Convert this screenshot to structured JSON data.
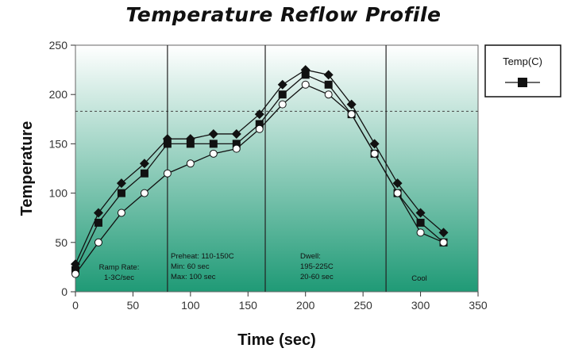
{
  "chart_data": {
    "type": "line",
    "title": "Temperature Reflow Profile",
    "xlabel": "Time (sec)",
    "ylabel": "Temperature",
    "xlim": [
      0,
      350
    ],
    "ylim": [
      0,
      250
    ],
    "x_ticks": [
      "0",
      "50",
      "100",
      "150",
      "200",
      "250",
      "300",
      "350"
    ],
    "y_ticks": [
      "0",
      "50",
      "100",
      "150",
      "200",
      "250"
    ],
    "grid": false,
    "background": "vertical gradient white to green",
    "colors": {
      "gradient_top": "#ffffff",
      "gradient_bottom": "#1f9a76",
      "line": "#111111",
      "reference_line": "#444444"
    },
    "reference_line_y": 183,
    "zone_dividers_x": [
      80,
      165,
      270
    ],
    "legend": {
      "position": "right",
      "label": "Temp(C)"
    },
    "zone_annotations": [
      {
        "id": "ramp",
        "lines": [
          "Ramp Rate:",
          "1-3C/sec"
        ]
      },
      {
        "id": "preheat",
        "lines": [
          "Preheat: 110-150C",
          "Min: 60 sec",
          "Max: 100 sec"
        ]
      },
      {
        "id": "dwell",
        "lines": [
          "Dwell:",
          "195-225C",
          "20-60 sec"
        ]
      },
      {
        "id": "cool",
        "lines": [
          "Cool"
        ]
      }
    ],
    "series": [
      {
        "marker": "diamond",
        "x": [
          0,
          20,
          40,
          60,
          80,
          100,
          120,
          140,
          160,
          180,
          200,
          220,
          240,
          260,
          280,
          300,
          320
        ],
        "values": [
          28,
          80,
          110,
          130,
          155,
          155,
          160,
          160,
          180,
          210,
          225,
          220,
          190,
          150,
          110,
          80,
          60
        ]
      },
      {
        "name": "Temp(C)",
        "marker": "square",
        "x": [
          0,
          20,
          40,
          60,
          80,
          100,
          120,
          140,
          160,
          180,
          200,
          220,
          240,
          260,
          280,
          300,
          320
        ],
        "values": [
          22,
          70,
          100,
          120,
          150,
          150,
          150,
          150,
          170,
          200,
          220,
          210,
          180,
          140,
          100,
          70,
          50
        ]
      },
      {
        "marker": "circle-open",
        "x": [
          0,
          20,
          40,
          60,
          80,
          100,
          120,
          140,
          160,
          180,
          200,
          220,
          240,
          260,
          280,
          300,
          320
        ],
        "values": [
          18,
          50,
          80,
          100,
          120,
          130,
          140,
          145,
          165,
          190,
          210,
          200,
          180,
          140,
          100,
          60,
          50
        ]
      }
    ]
  }
}
